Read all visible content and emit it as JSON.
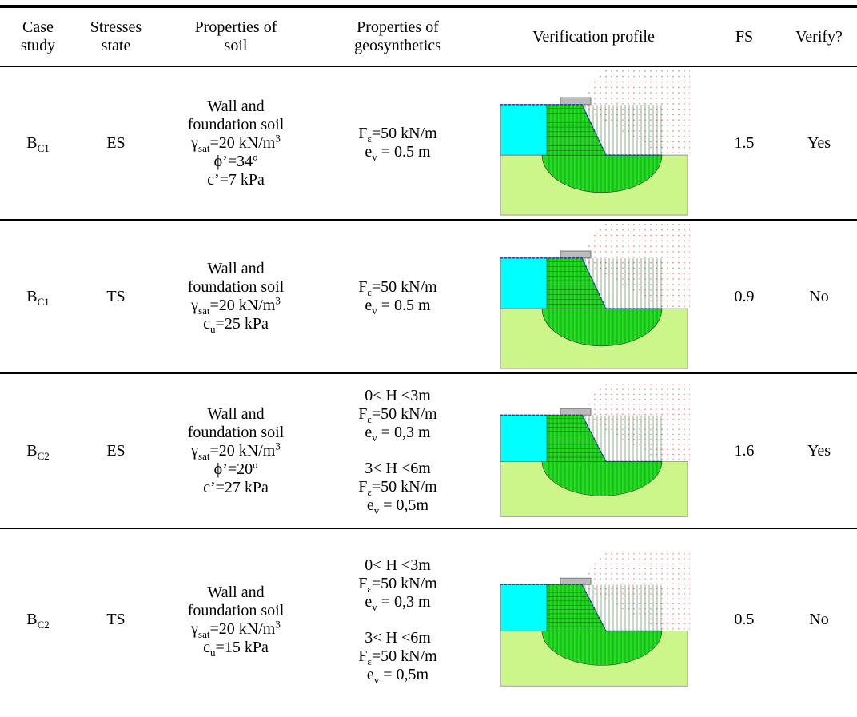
{
  "table": {
    "header": [
      [
        "Case",
        "study"
      ],
      [
        "Stresses",
        "state"
      ],
      [
        "Properties of",
        "soil"
      ],
      [
        "Properties of",
        "geosynthetics"
      ],
      [
        "Verification profile"
      ],
      [
        "FS"
      ],
      [
        "Verify?"
      ]
    ],
    "rows": [
      {
        "case": [
          "B",
          {
            "sub": "C1"
          }
        ],
        "state": "ES",
        "soil": [
          [
            "Wall and"
          ],
          [
            "foundation soil"
          ],
          [
            "γ",
            {
              "sub": "sat"
            },
            "=20 kN/m",
            {
              "sup": "3"
            }
          ],
          [
            "ϕ’=34º"
          ],
          [
            "c’=7 kPa"
          ]
        ],
        "geo": [
          [
            [
              "F",
              {
                "sub": "ε"
              },
              "=50 kN/m"
            ],
            [
              "e",
              {
                "sub": "v"
              },
              " = 0.5 m"
            ]
          ]
        ],
        "fs": 1.5,
        "verify": "Yes"
      },
      {
        "case": [
          "B",
          {
            "sub": "C1"
          }
        ],
        "state": "TS",
        "soil": [
          [
            "Wall and"
          ],
          [
            "foundation soil"
          ],
          [
            "γ",
            {
              "sub": "sat"
            },
            "=20 kN/m",
            {
              "sup": "3"
            }
          ],
          [
            "c",
            {
              "sub": "u"
            },
            "=25 kPa"
          ]
        ],
        "geo": [
          [
            [
              "F",
              {
                "sub": "ε"
              },
              "=50 kN/m"
            ],
            [
              "e",
              {
                "sub": "v"
              },
              " = 0.5 m"
            ]
          ]
        ],
        "fs": 0.9,
        "verify": "No"
      },
      {
        "case": [
          "B",
          {
            "sub": "C2"
          }
        ],
        "state": "ES",
        "soil": [
          [
            "Wall and"
          ],
          [
            "foundation soil"
          ],
          [
            "γ",
            {
              "sub": "sat"
            },
            "=20 kN/m",
            {
              "sup": "3"
            }
          ],
          [
            "ϕ’=20º"
          ],
          [
            "c’=27 kPa"
          ]
        ],
        "geo": [
          [
            [
              "0< H <3m"
            ],
            [
              "F",
              {
                "sub": "ε"
              },
              "=50 kN/m"
            ],
            [
              "e",
              {
                "sub": "v"
              },
              " = 0,3 m"
            ]
          ],
          [
            [
              "3< H <6m"
            ],
            [
              "F",
              {
                "sub": "ε"
              },
              "=50 kN/m"
            ],
            [
              "e",
              {
                "sub": "v"
              },
              " = 0,5m"
            ]
          ]
        ],
        "fs": 1.6,
        "verify": "Yes"
      },
      {
        "case": [
          "B",
          {
            "sub": "C2"
          }
        ],
        "state": "TS",
        "soil": [
          [
            "Wall and"
          ],
          [
            "foundation soil"
          ],
          [
            "γ",
            {
              "sub": "sat"
            },
            "=20 kN/m",
            {
              "sup": "3"
            }
          ],
          [
            "c",
            {
              "sub": "u"
            },
            "=15 kPa"
          ]
        ],
        "geo": [
          [
            [
              "0< H <3m"
            ],
            [
              "F",
              {
                "sub": "ε"
              },
              "=50 kN/m"
            ],
            [
              "e",
              {
                "sub": "v"
              },
              " = 0,3 m"
            ]
          ],
          [
            [
              "3< H <6m"
            ],
            [
              "F",
              {
                "sub": "ε"
              },
              "=50 kN/m"
            ],
            [
              "e",
              {
                "sub": "v"
              },
              " = 0,5m"
            ]
          ]
        ],
        "fs": 0.5,
        "verify": "No"
      }
    ]
  }
}
